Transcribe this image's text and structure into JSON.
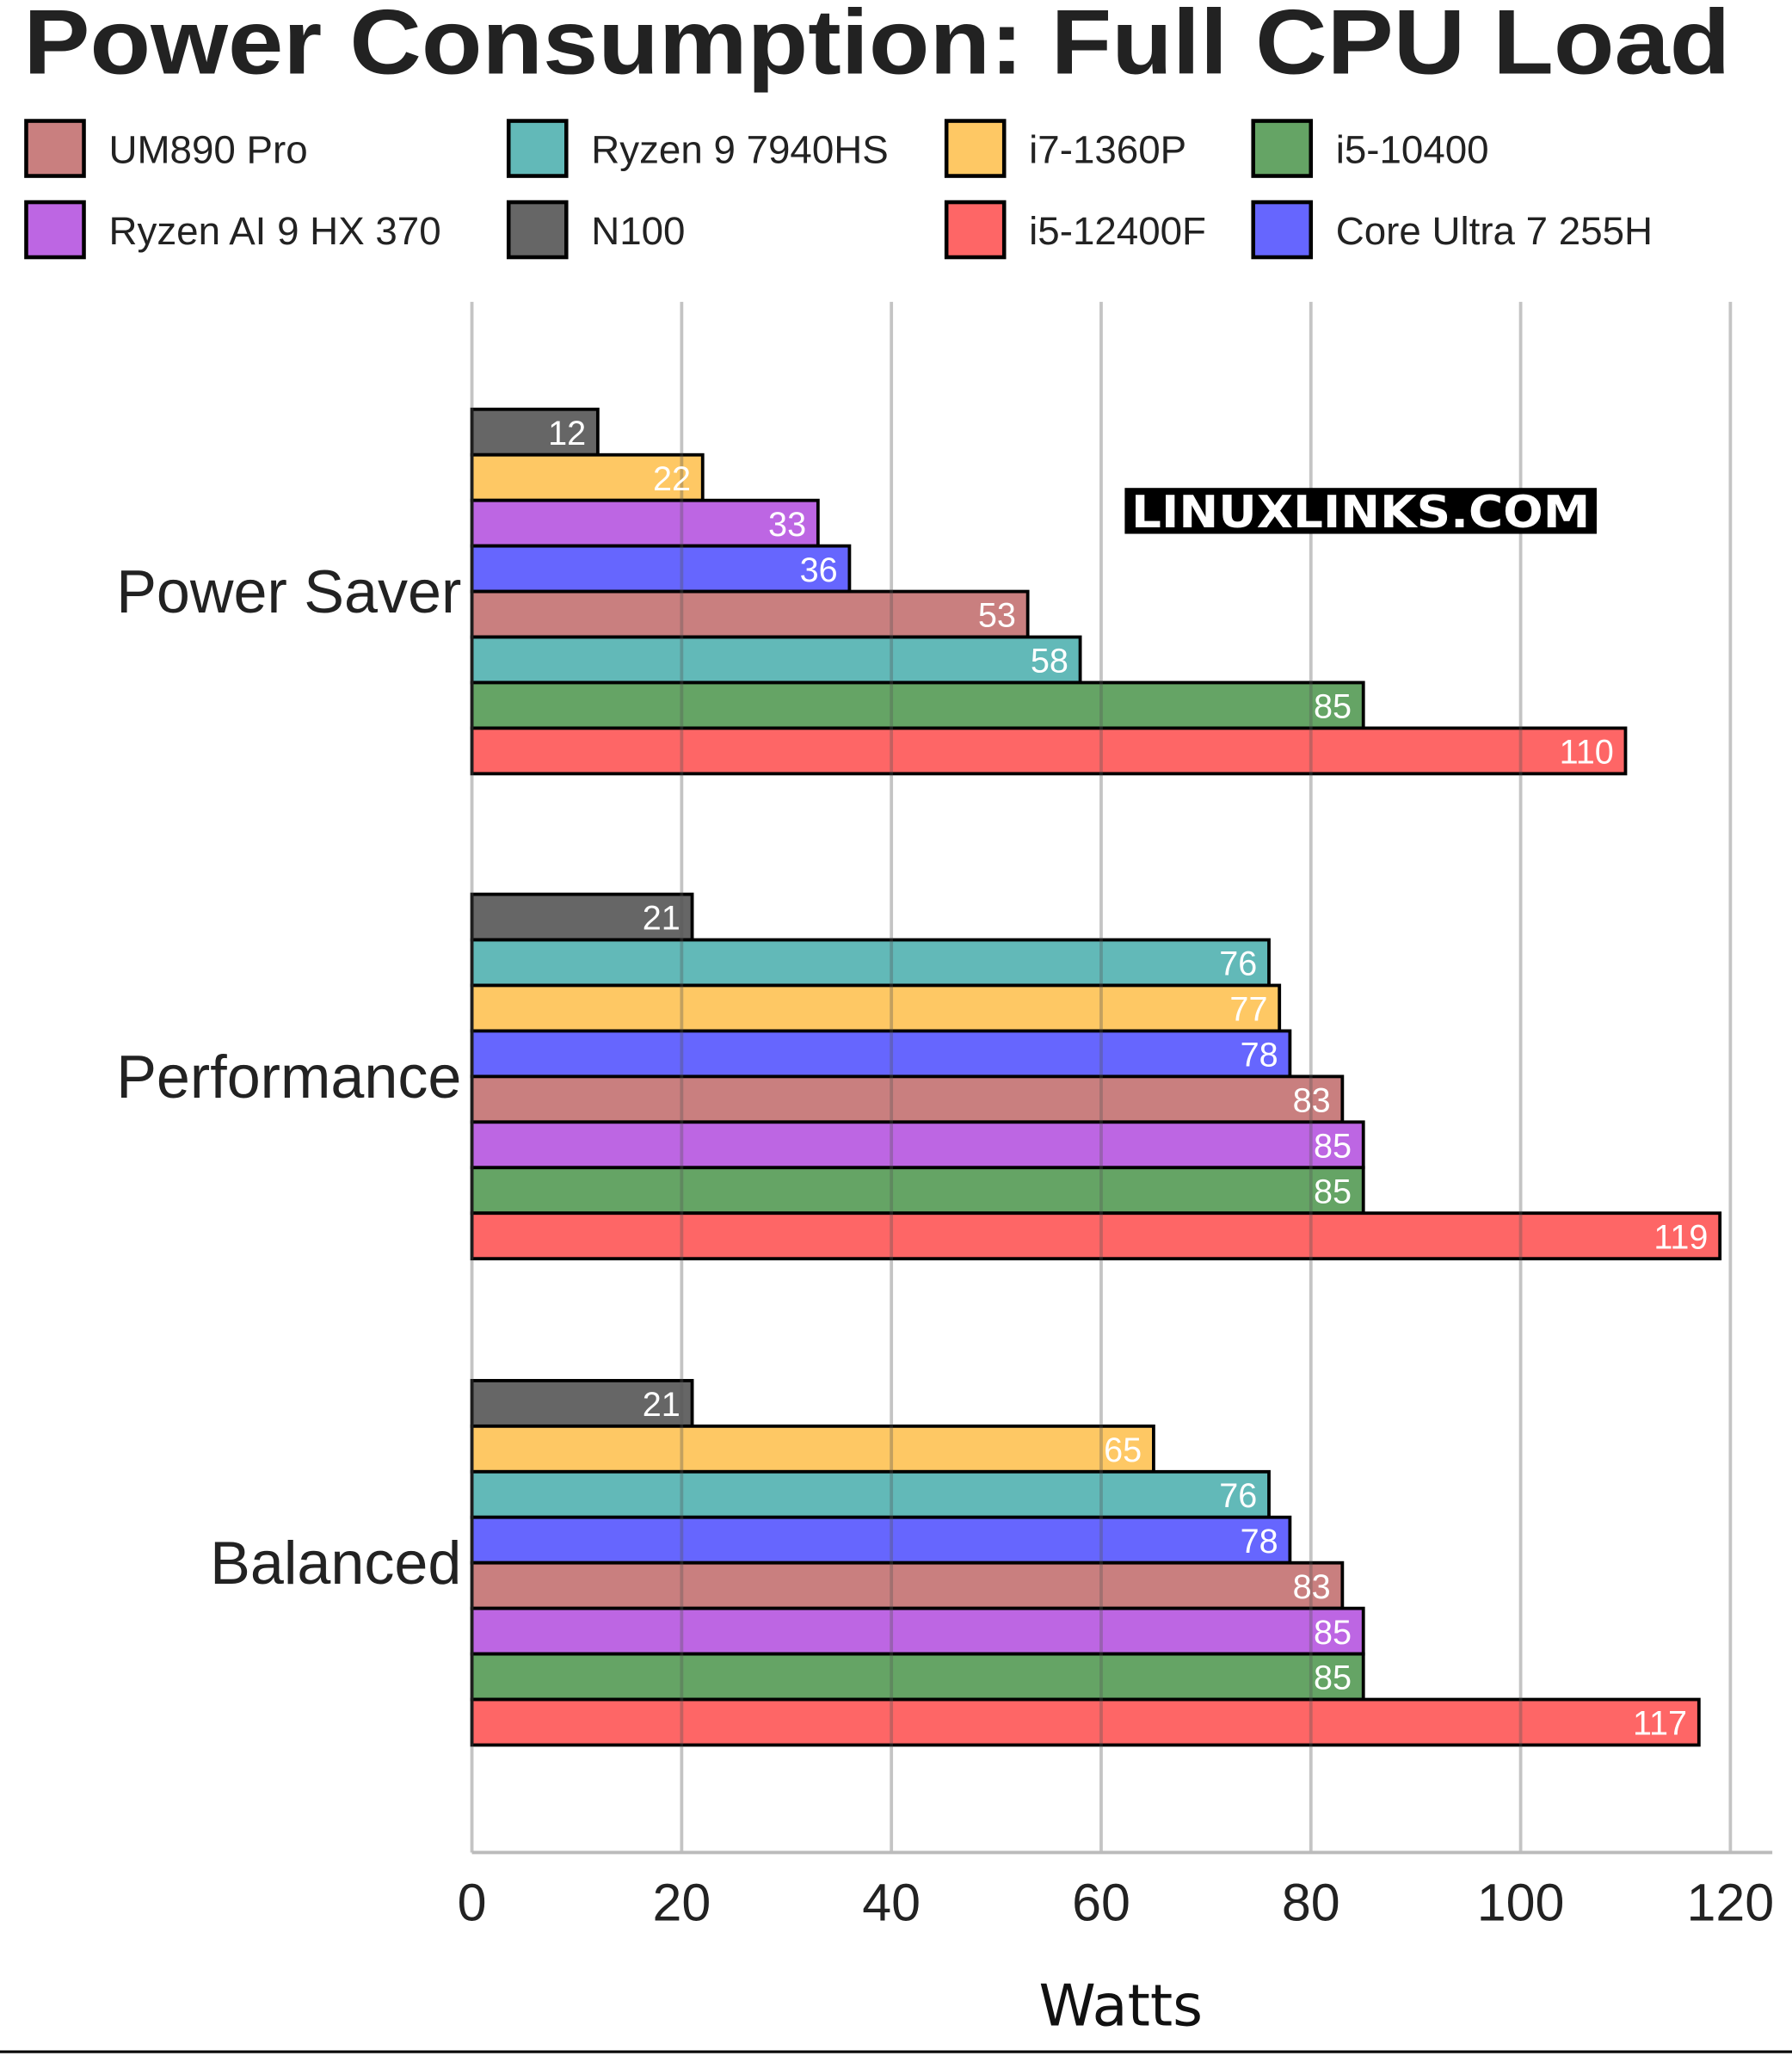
{
  "chart_data": {
    "type": "bar",
    "orientation": "horizontal",
    "title": "Power Consumption: Full CPU Load",
    "xlabel": "Watts",
    "xlim": [
      0,
      120
    ],
    "xticks": [
      "0",
      "20",
      "40",
      "60",
      "80",
      "100",
      "120"
    ],
    "grid": true,
    "legend_position": "top",
    "watermark": "LINUXLINKS.COM",
    "categories": [
      "Power Saver",
      "Performance",
      "Balanced"
    ],
    "series": [
      {
        "name": "UM890 Pro",
        "color": "#c97f7f",
        "values": [
          53,
          83,
          83
        ]
      },
      {
        "name": "Ryzen 9 7940HS",
        "color": "#62b9b8",
        "values": [
          58,
          76,
          76
        ]
      },
      {
        "name": "i7-1360P",
        "color": "#fec864",
        "values": [
          22,
          77,
          65
        ]
      },
      {
        "name": "i5-10400",
        "color": "#65a465",
        "values": [
          85,
          85,
          85
        ]
      },
      {
        "name": "Ryzen AI 9 HX 370",
        "color": "#bd66e3",
        "values": [
          33,
          85,
          85
        ]
      },
      {
        "name": "N100",
        "color": "#666666",
        "values": [
          12,
          21,
          21
        ]
      },
      {
        "name": "i5-12400F",
        "color": "#fe6666",
        "values": [
          110,
          119,
          117
        ]
      },
      {
        "name": "Core Ultra 7 255H",
        "color": "#6666fe",
        "values": [
          36,
          78,
          78
        ]
      }
    ]
  }
}
